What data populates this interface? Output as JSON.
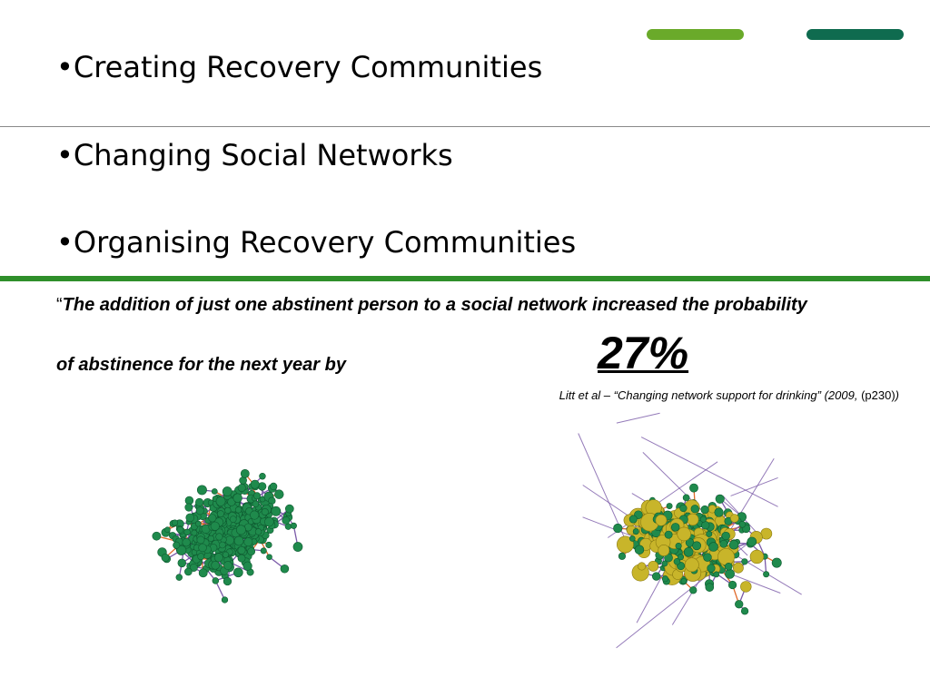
{
  "colors": {
    "accent_light": "#6aaa2a",
    "accent_dark": "#0f6b4f",
    "rule_green": "#2f8f2a",
    "node_green": "#1f8a4c",
    "node_yellow": "#c8b52a",
    "edge_orange": "#e06a2a",
    "edge_purple": "#7a5aa8"
  },
  "bullets": [
    {
      "marker": "•",
      "text": "Creating Recovery Communities"
    },
    {
      "marker": "•",
      "text": "Changing Social Networks"
    },
    {
      "marker": "•",
      "text": "Organising Recovery Communities"
    }
  ],
  "quote": {
    "open_mark": "“",
    "line1": "The addition of just one abstinent person to a social network increased the probability",
    "line2": "of abstinence for the next year by"
  },
  "stat": "27%",
  "citation": {
    "text": "Litt et al – “Changing network support for drinking” (2009, ",
    "page": "(p230)",
    "close": ")"
  },
  "figure": {
    "icon": "social-network-graph-icon"
  }
}
